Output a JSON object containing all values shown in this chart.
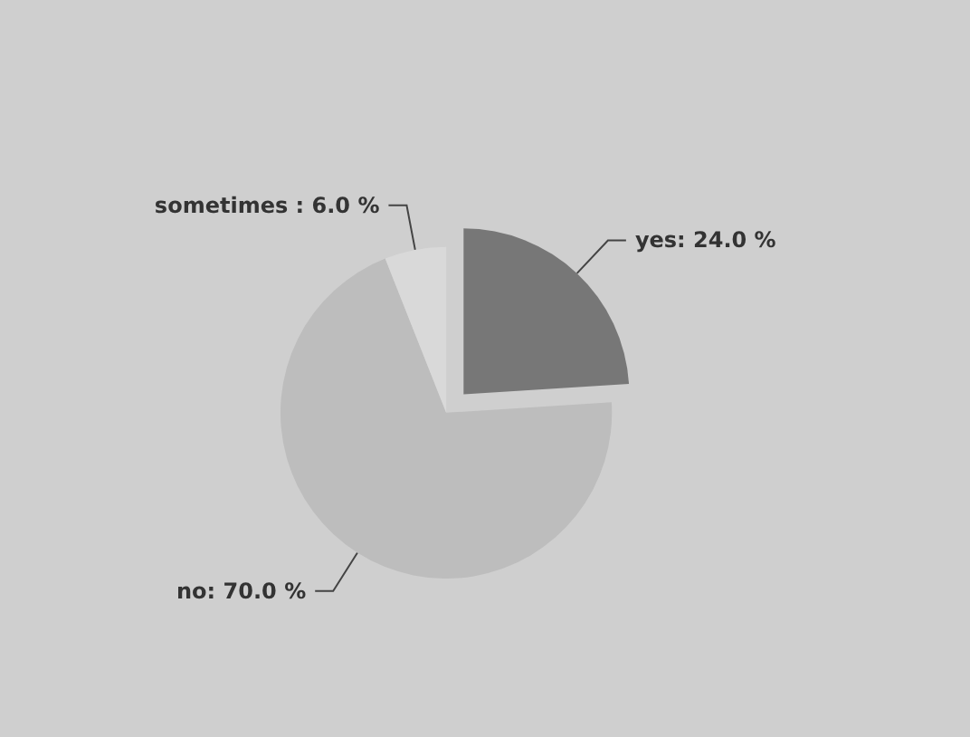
{
  "chart_data": {
    "type": "pie",
    "categories": [
      "yes",
      "no",
      "sometimes "
    ],
    "values": [
      24,
      70,
      6
    ],
    "colors": [
      "#777777",
      "#bdbdbd",
      "#d9d9d9"
    ],
    "value_labels": [
      "24.0 %",
      "70.0 %",
      "6.0 %"
    ],
    "legend": false
  }
}
